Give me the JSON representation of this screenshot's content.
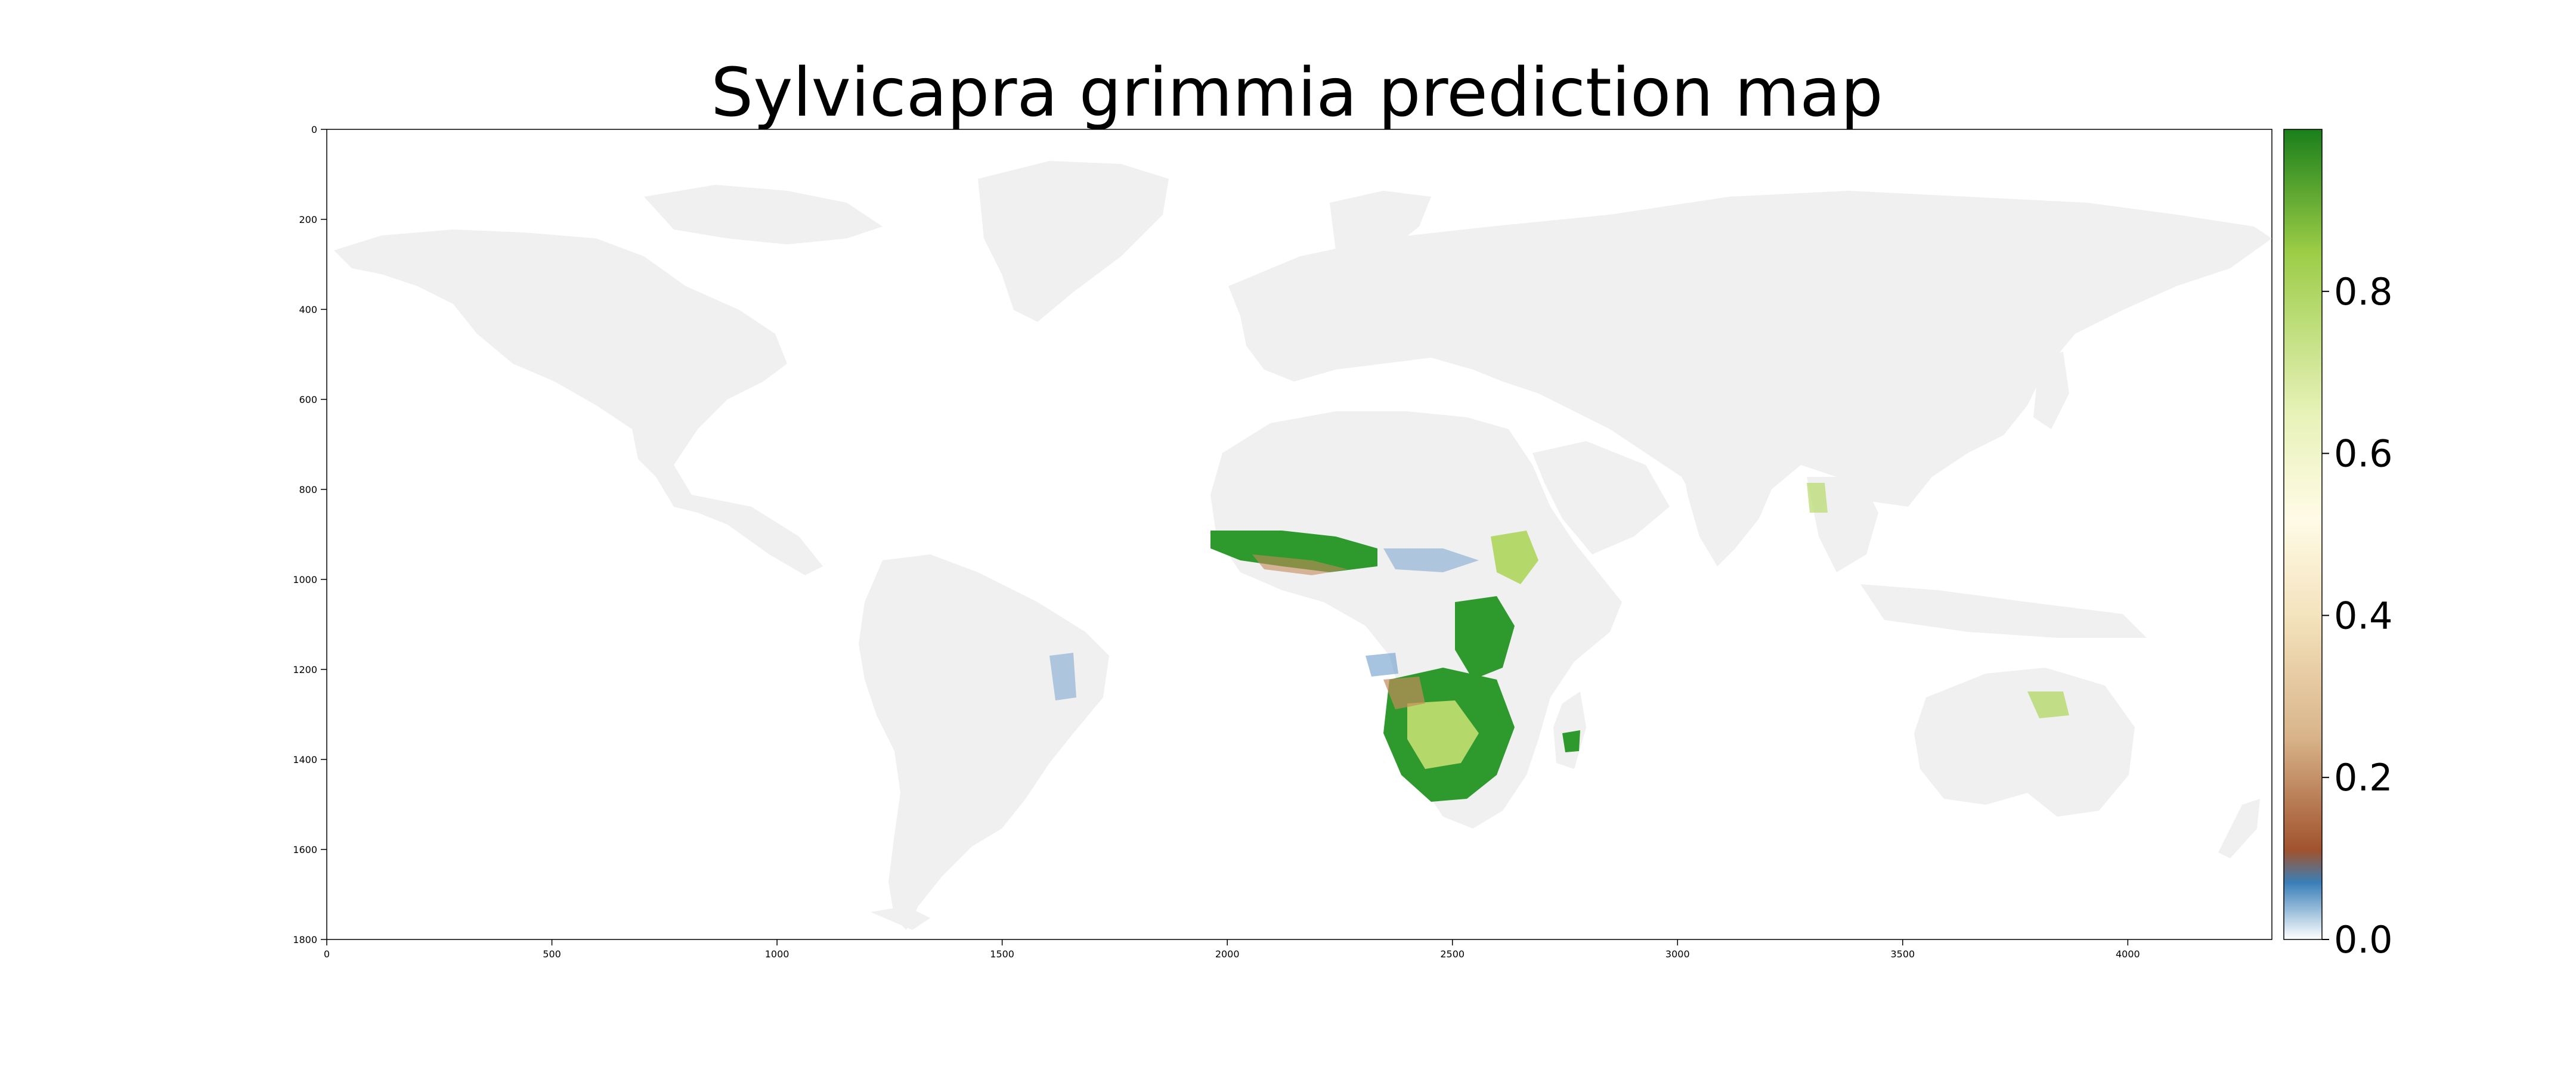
{
  "title": "Sylvicapra grimmia prediction map",
  "axes": {
    "x_ticks": [
      "0",
      "500",
      "1000",
      "1500",
      "2000",
      "2500",
      "3000",
      "3500",
      "4000"
    ],
    "y_ticks": [
      "0",
      "200",
      "400",
      "600",
      "800",
      "1000",
      "1200",
      "1400",
      "1600",
      "1800"
    ],
    "x_range": [
      0,
      4320
    ],
    "y_range": [
      0,
      1800
    ]
  },
  "colorbar": {
    "ticks": [
      "0.0",
      "0.2",
      "0.4",
      "0.6",
      "0.8"
    ],
    "colormap": [
      "#ffffff",
      "#3a7fb8",
      "#a0522d",
      "#d9b48a",
      "#f4e3bd",
      "#fffbe6",
      "#e7f2b8",
      "#9bcc46",
      "#1a7f1a"
    ]
  },
  "colors": {
    "land": "#f0f0f0",
    "high": "#2e9a2e",
    "mid": "#b5d86a",
    "low": "#c58a5a",
    "verylow": "#6a9ccc"
  }
}
